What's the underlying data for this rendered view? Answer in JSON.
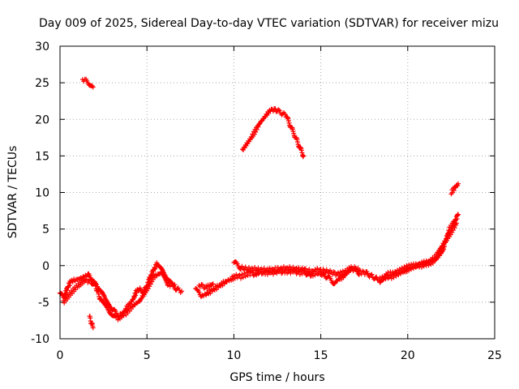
{
  "chart_data": {
    "type": "scatter",
    "title": "Day 009 of 2025, Sidereal Day-to-day VTEC variation (SDTVAR) for receiver mizu",
    "xlabel": "GPS time / hours",
    "ylabel": "SDTVAR / TECUs",
    "xlim": [
      0,
      25
    ],
    "ylim": [
      -10,
      30
    ],
    "x_ticks": [
      "0",
      "5",
      "10",
      "15",
      "20",
      "25"
    ],
    "y_ticks": [
      "-10",
      "-5",
      "0",
      "5",
      "10",
      "15",
      "20",
      "25",
      "30"
    ],
    "grid": true,
    "marker": "+",
    "color": "#ff0000",
    "series": [
      {
        "name": "main-trace",
        "points": [
          [
            0.0,
            -3.5
          ],
          [
            0.2,
            -4.5
          ],
          [
            0.4,
            -3.2
          ],
          [
            0.6,
            -2.2
          ],
          [
            0.8,
            -2.0
          ],
          [
            1.0,
            -1.9
          ],
          [
            1.2,
            -1.7
          ],
          [
            1.4,
            -1.5
          ],
          [
            1.6,
            -1.3
          ],
          [
            1.8,
            -1.6
          ],
          [
            2.0,
            -2.5
          ],
          [
            2.2,
            -3.8
          ],
          [
            2.4,
            -5.0
          ],
          [
            2.6,
            -5.6
          ],
          [
            2.8,
            -6.1
          ],
          [
            3.0,
            -6.6
          ],
          [
            3.2,
            -7.1
          ],
          [
            3.4,
            -7.2
          ],
          [
            3.6,
            -6.7
          ],
          [
            3.8,
            -5.9
          ],
          [
            4.0,
            -5.3
          ],
          [
            4.2,
            -4.6
          ],
          [
            4.4,
            -3.5
          ],
          [
            4.6,
            -3.2
          ],
          [
            4.8,
            -3.6
          ],
          [
            5.0,
            -2.8
          ],
          [
            5.2,
            -1.5
          ],
          [
            5.4,
            -0.5
          ],
          [
            5.6,
            0.3
          ],
          [
            5.8,
            -0.5
          ],
          [
            6.0,
            -1.3
          ],
          [
            6.2,
            -2.0
          ],
          [
            6.4,
            -2.5
          ],
          [
            6.6,
            -3.0
          ],
          [
            6.8,
            -3.3
          ],
          [
            7.0,
            -3.5
          ],
          [
            7.8,
            -3.3
          ],
          [
            8.0,
            -3.8
          ],
          [
            8.2,
            -4.1
          ],
          [
            8.4,
            -3.9
          ],
          [
            8.6,
            -3.6
          ],
          [
            8.8,
            -3.3
          ],
          [
            9.0,
            -3.0
          ],
          [
            9.2,
            -2.7
          ],
          [
            9.4,
            -2.4
          ],
          [
            9.6,
            -2.1
          ],
          [
            9.8,
            -1.9
          ],
          [
            10.0,
            -1.6
          ],
          [
            10.2,
            -1.4
          ],
          [
            10.4,
            -1.5
          ],
          [
            10.6,
            -1.3
          ],
          [
            10.8,
            -1.1
          ],
          [
            11.0,
            -1.0
          ],
          [
            11.2,
            -1.2
          ],
          [
            11.4,
            -0.9
          ],
          [
            11.6,
            -1.1
          ],
          [
            11.8,
            -1.0
          ],
          [
            12.0,
            -1.0
          ],
          [
            12.2,
            -0.9
          ],
          [
            12.4,
            -1.0
          ],
          [
            12.6,
            -0.8
          ],
          [
            12.8,
            -0.9
          ],
          [
            13.0,
            -0.8
          ],
          [
            13.2,
            -0.9
          ],
          [
            13.4,
            -0.7
          ],
          [
            13.6,
            -0.9
          ],
          [
            13.8,
            -1.0
          ],
          [
            14.0,
            -0.8
          ],
          [
            14.2,
            -1.1
          ],
          [
            14.4,
            -1.4
          ],
          [
            14.6,
            -1.1
          ],
          [
            14.8,
            -1.0
          ],
          [
            15.0,
            -1.1
          ],
          [
            15.2,
            -1.3
          ],
          [
            15.4,
            -1.6
          ],
          [
            15.6,
            -2.0
          ],
          [
            15.8,
            -2.4
          ],
          [
            16.0,
            -1.9
          ],
          [
            16.2,
            -1.6
          ],
          [
            16.4,
            -1.3
          ],
          [
            16.6,
            -0.8
          ],
          [
            16.8,
            -0.4
          ],
          [
            17.0,
            -0.6
          ],
          [
            17.2,
            -1.0
          ],
          [
            17.4,
            -0.9
          ],
          [
            17.6,
            -1.0
          ],
          [
            17.8,
            -1.3
          ],
          [
            18.0,
            -1.5
          ],
          [
            18.2,
            -1.8
          ],
          [
            18.4,
            -1.9
          ],
          [
            18.6,
            -1.7
          ],
          [
            18.8,
            -1.5
          ],
          [
            19.0,
            -1.6
          ],
          [
            19.2,
            -1.4
          ],
          [
            19.4,
            -1.2
          ],
          [
            19.6,
            -1.0
          ],
          [
            19.8,
            -0.8
          ],
          [
            20.0,
            -0.5
          ],
          [
            20.2,
            -0.4
          ],
          [
            20.4,
            -0.2
          ],
          [
            20.6,
            -0.1
          ],
          [
            20.8,
            0.0
          ],
          [
            21.0,
            0.2
          ],
          [
            21.2,
            0.3
          ],
          [
            21.4,
            0.5
          ],
          [
            21.6,
            0.8
          ],
          [
            21.8,
            1.3
          ],
          [
            22.0,
            2.0
          ],
          [
            22.2,
            3.5
          ],
          [
            22.4,
            5.0
          ],
          [
            22.6,
            5.7
          ],
          [
            22.8,
            6.5
          ],
          [
            22.9,
            7.0
          ]
        ]
      },
      {
        "name": "secondary-trace",
        "points": [
          [
            0.2,
            -5.0
          ],
          [
            0.6,
            -3.8
          ],
          [
            1.0,
            -2.8
          ],
          [
            1.4,
            -2.0
          ],
          [
            1.8,
            -2.2
          ],
          [
            2.2,
            -3.0
          ],
          [
            2.6,
            -4.6
          ],
          [
            3.0,
            -6.0
          ],
          [
            3.4,
            -6.8
          ],
          [
            3.8,
            -6.5
          ],
          [
            4.2,
            -5.5
          ],
          [
            4.6,
            -4.8
          ],
          [
            5.0,
            -3.2
          ],
          [
            5.4,
            -1.5
          ],
          [
            5.8,
            -1.0
          ],
          [
            6.2,
            -2.6
          ],
          [
            6.6,
            -2.6
          ],
          [
            8.0,
            -2.6
          ],
          [
            8.4,
            -3.0
          ],
          [
            8.8,
            -2.5
          ],
          [
            10.0,
            0.5
          ],
          [
            10.4,
            -0.3
          ],
          [
            10.8,
            -0.5
          ],
          [
            11.2,
            -0.5
          ],
          [
            11.6,
            -0.6
          ],
          [
            12.0,
            -0.6
          ],
          [
            12.4,
            -0.5
          ],
          [
            12.8,
            -0.4
          ],
          [
            13.2,
            -0.4
          ],
          [
            13.6,
            -0.5
          ],
          [
            14.0,
            -0.5
          ],
          [
            14.4,
            -0.8
          ],
          [
            14.8,
            -0.6
          ],
          [
            15.2,
            -0.7
          ],
          [
            15.6,
            -0.9
          ],
          [
            16.0,
            -1.2
          ],
          [
            16.4,
            -0.8
          ],
          [
            16.8,
            -0.3
          ],
          [
            17.2,
            -0.6
          ],
          [
            18.4,
            -2.3
          ],
          [
            18.8,
            -1.2
          ],
          [
            19.2,
            -1.0
          ],
          [
            19.6,
            -0.6
          ],
          [
            20.0,
            -0.2
          ],
          [
            20.4,
            0.1
          ],
          [
            20.8,
            0.3
          ],
          [
            21.2,
            0.5
          ],
          [
            21.6,
            1.2
          ],
          [
            22.0,
            2.8
          ],
          [
            22.4,
            4.2
          ],
          [
            22.8,
            5.8
          ]
        ]
      },
      {
        "name": "arc-morning",
        "points": [
          [
            1.3,
            25.5
          ],
          [
            1.5,
            25.3
          ],
          [
            1.7,
            24.9
          ],
          [
            1.9,
            24.4
          ]
        ]
      },
      {
        "name": "arc-midday",
        "points": [
          [
            10.5,
            15.8
          ],
          [
            11.0,
            17.5
          ],
          [
            11.5,
            19.5
          ],
          [
            12.0,
            21.0
          ],
          [
            12.2,
            21.4
          ],
          [
            12.5,
            21.2
          ],
          [
            13.0,
            20.5
          ],
          [
            13.5,
            17.8
          ],
          [
            14.0,
            15.0
          ]
        ]
      },
      {
        "name": "dip-morning",
        "points": [
          [
            1.7,
            -7.0
          ],
          [
            1.8,
            -7.8
          ],
          [
            1.9,
            -8.5
          ]
        ]
      },
      {
        "name": "late-rise",
        "points": [
          [
            22.5,
            10.0
          ],
          [
            22.7,
            10.6
          ],
          [
            22.9,
            11.2
          ]
        ]
      }
    ]
  }
}
